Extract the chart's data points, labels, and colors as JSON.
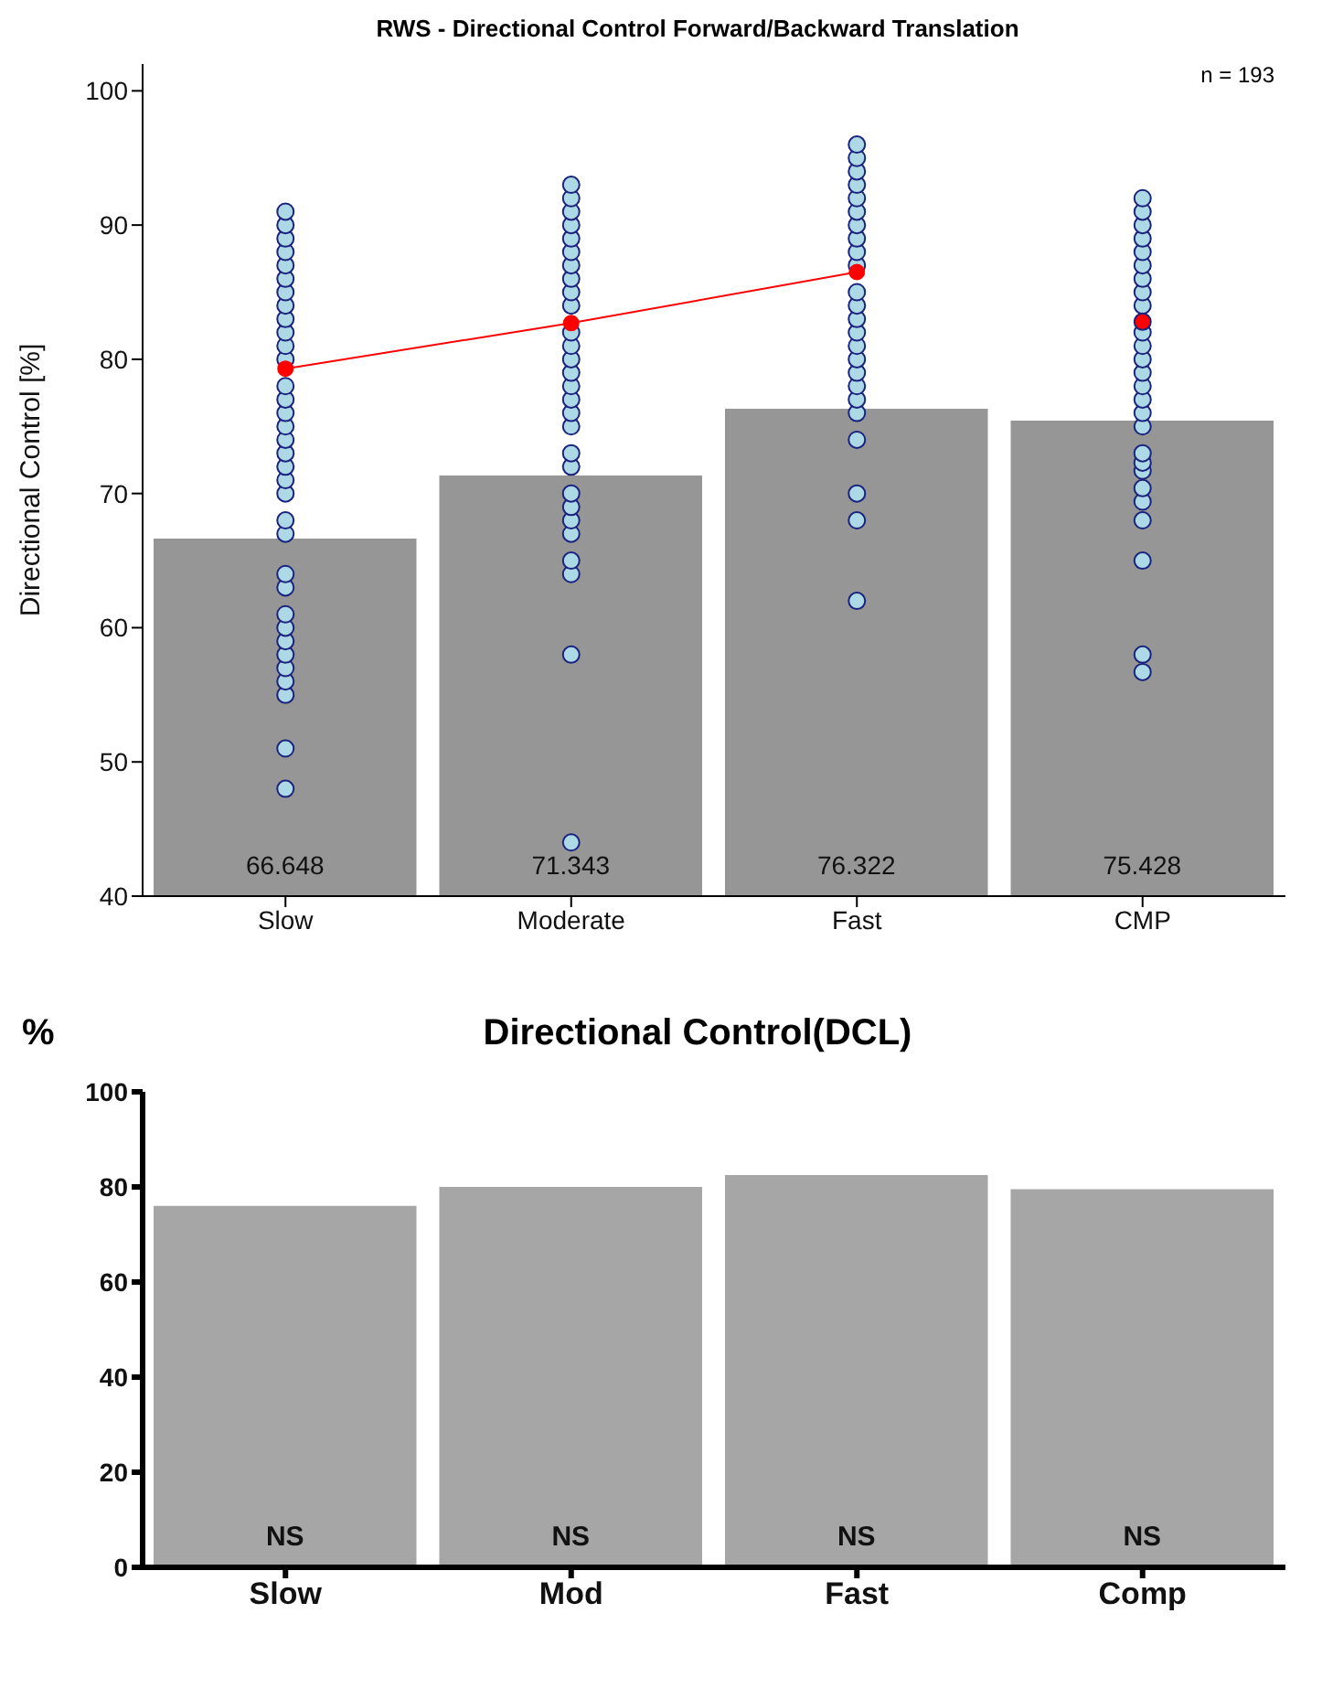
{
  "chart_data": [
    {
      "type": "bar",
      "title": "RWS - Directional Control Forward/Backward Translation",
      "ylabel": "Directional Control [%]",
      "categories": [
        "Slow",
        "Moderate",
        "Fast",
        "CMP"
      ],
      "ylim": [
        40,
        102
      ],
      "yticks": [
        40,
        50,
        60,
        70,
        80,
        90,
        100
      ],
      "annotations": [
        "n = 193"
      ],
      "series": [
        {
          "color": "#969696",
          "values": [
            66.648,
            71.343,
            76.322,
            75.428
          ],
          "value_labels": [
            "66.648",
            "71.343",
            "76.322",
            "75.428"
          ]
        },
        {
          "type": "scatter",
          "color": "#add8e6",
          "x": [
            "Slow",
            "Slow",
            "Slow",
            "Slow",
            "Slow",
            "Slow",
            "Slow",
            "Slow",
            "Slow",
            "Slow",
            "Slow",
            "Slow",
            "Slow",
            "Slow",
            "Slow",
            "Slow",
            "Slow",
            "Slow",
            "Slow",
            "Slow",
            "Slow",
            "Slow",
            "Slow",
            "Slow",
            "Slow",
            "Slow",
            "Slow",
            "Slow",
            "Slow",
            "Slow",
            "Slow",
            "Slow",
            "Slow",
            "Slow",
            "Slow"
          ],
          "values": [
            48,
            51,
            55,
            56,
            57,
            58,
            59,
            60,
            61,
            63,
            64,
            67,
            68,
            70,
            71,
            72,
            73,
            74,
            75,
            76,
            77,
            78,
            null,
            80,
            81,
            82,
            83,
            84,
            85,
            86,
            87,
            88,
            89,
            90,
            91
          ]
        },
        {
          "type": "scatter",
          "color": "#add8e6",
          "x": [
            "Moderate",
            "Moderate",
            "Moderate",
            "Moderate",
            "Moderate",
            "Moderate",
            "Moderate",
            "Moderate",
            "Moderate",
            "Moderate",
            "Moderate",
            "Moderate",
            "Moderate",
            "Moderate",
            "Moderate",
            "Moderate",
            "Moderate",
            "Moderate",
            "Moderate",
            "Moderate",
            "Moderate",
            "Moderate",
            "Moderate",
            "Moderate",
            "Moderate",
            "Moderate",
            "Moderate",
            "Moderate",
            "Moderate"
          ],
          "values": [
            44,
            58,
            64,
            65,
            67,
            68,
            69,
            70,
            72,
            73,
            75,
            76,
            77,
            78,
            79,
            80,
            81,
            82,
            null,
            84,
            85,
            86,
            87,
            88,
            89,
            90,
            91,
            92,
            93
          ]
        },
        {
          "type": "scatter",
          "color": "#add8e6",
          "x": [
            "Fast",
            "Fast",
            "Fast",
            "Fast",
            "Fast",
            "Fast",
            "Fast",
            "Fast",
            "Fast",
            "Fast",
            "Fast",
            "Fast",
            "Fast",
            "Fast",
            "Fast",
            "Fast",
            "Fast",
            "Fast",
            "Fast",
            "Fast",
            "Fast",
            "Fast",
            "Fast",
            "Fast",
            "Fast"
          ],
          "values": [
            62,
            68,
            70,
            74,
            76,
            77,
            78,
            79,
            80,
            81,
            82,
            83,
            84,
            85,
            null,
            87,
            88,
            89,
            90,
            91,
            92,
            93,
            94,
            95,
            96
          ]
        },
        {
          "type": "scatter",
          "color": "#add8e6",
          "x": [
            "CMP",
            "CMP",
            "CMP",
            "CMP",
            "CMP",
            "CMP",
            "CMP",
            "CMP",
            "CMP",
            "CMP",
            "CMP",
            "CMP",
            "CMP",
            "CMP",
            "CMP",
            "CMP",
            "CMP",
            "CMP",
            "CMP",
            "CMP",
            "CMP",
            "CMP",
            "CMP",
            "CMP",
            "CMP",
            "CMP",
            "CMP"
          ],
          "values": [
            56.7,
            58,
            65,
            68,
            69.4,
            70.4,
            71.7,
            72.3,
            73,
            75,
            76,
            77,
            78,
            79,
            80,
            81,
            82,
            null,
            84,
            85,
            86,
            87,
            88,
            89,
            90,
            91,
            92
          ]
        },
        {
          "type": "line",
          "color": "#ff0000",
          "marker": "circle",
          "values": [
            79.3,
            82.7,
            86.5,
            null
          ]
        },
        {
          "type": "scatter",
          "color": "#ff0000",
          "x": [
            "CMP"
          ],
          "values": [
            82.8
          ]
        }
      ]
    },
    {
      "type": "bar",
      "title": "Directional Control(DCL)",
      "ylabel": "%",
      "categories": [
        "Slow",
        "Mod",
        "Fast",
        "Comp"
      ],
      "ylim": [
        0,
        100
      ],
      "yticks": [
        0,
        20,
        40,
        60,
        80,
        100
      ],
      "series": [
        {
          "color": "#a6a6a6",
          "values": [
            76,
            80,
            82.5,
            79.5
          ],
          "value_labels": [
            "NS",
            "NS",
            "NS",
            "NS"
          ]
        }
      ]
    }
  ]
}
